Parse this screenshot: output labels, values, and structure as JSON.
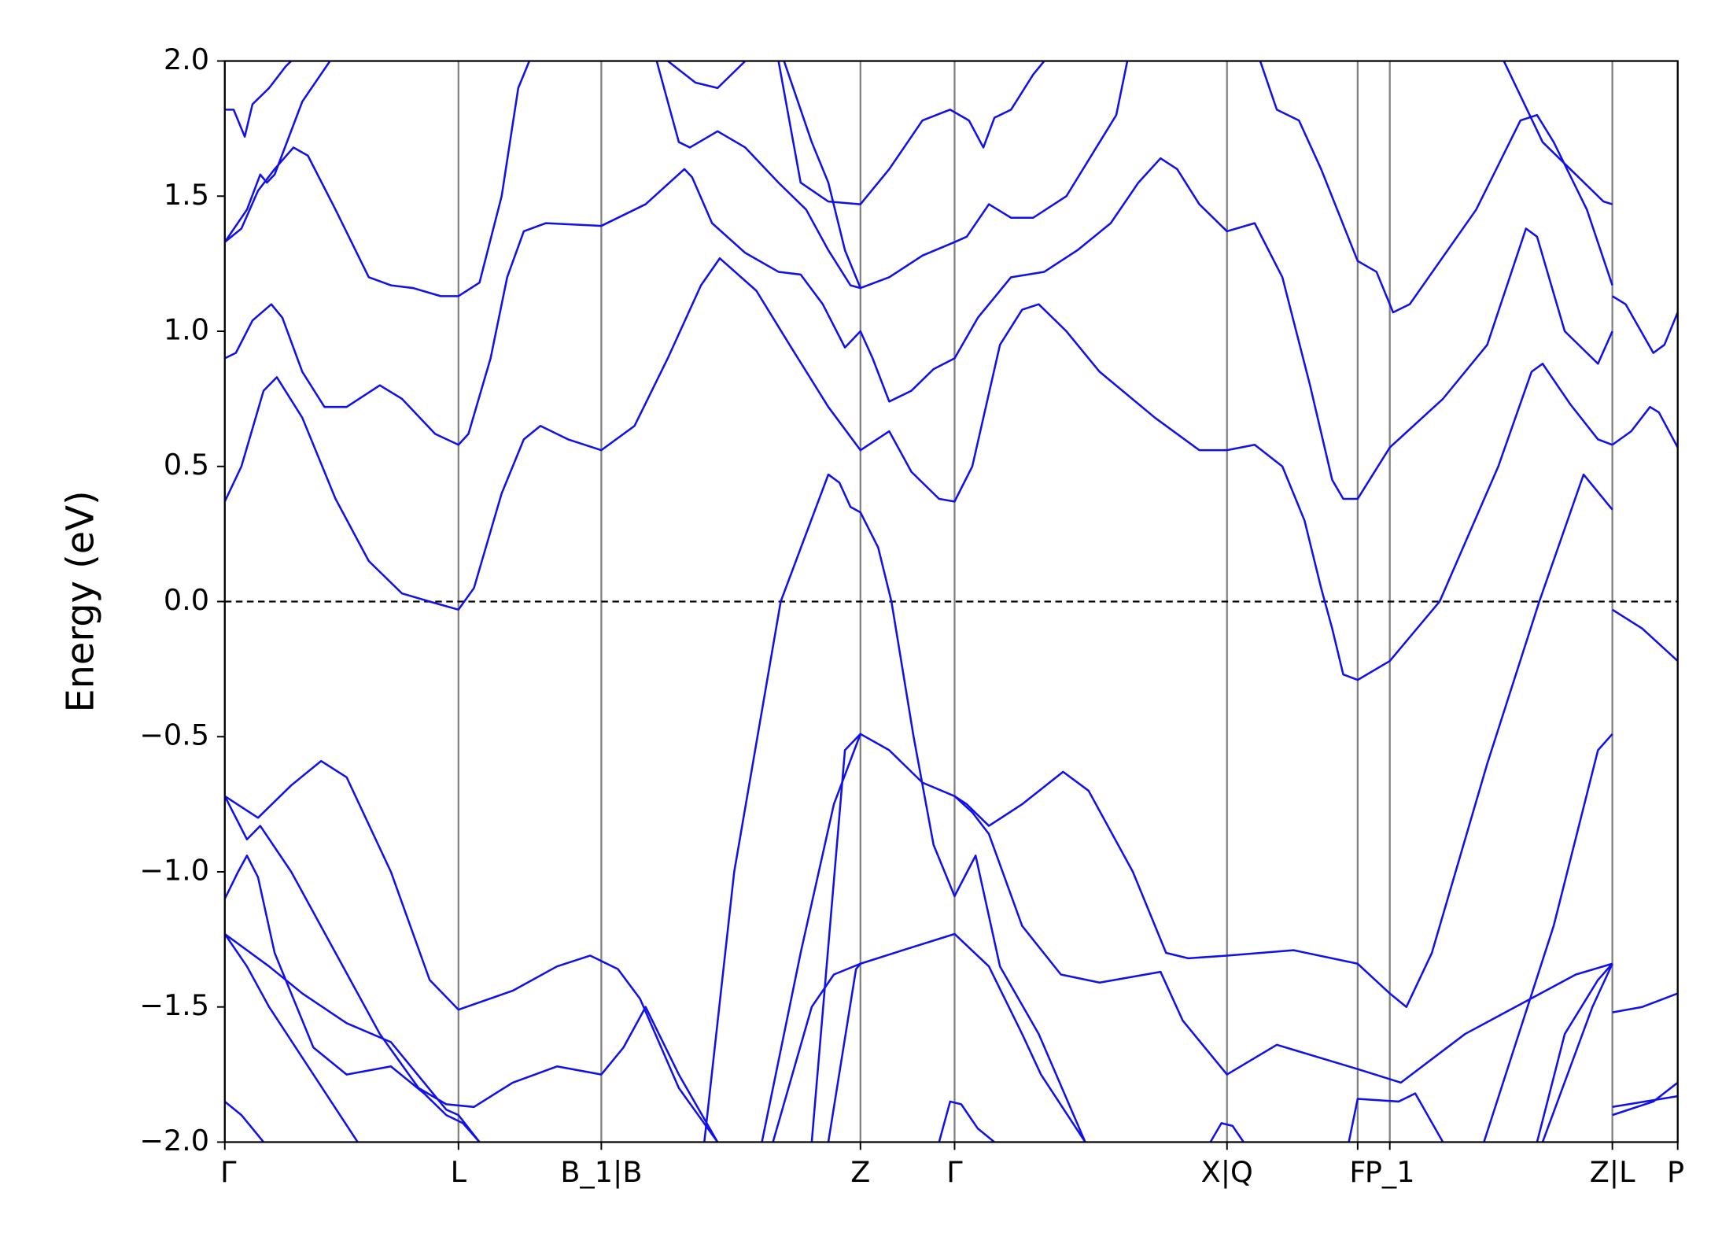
{
  "chart_data": {
    "type": "line",
    "y_label": "Energy (eV)",
    "xlim": [
      0,
      1312
    ],
    "xticks": [
      {
        "value": 0,
        "label": "Γ"
      },
      {
        "value": 211,
        "label": "L"
      },
      {
        "value": 340,
        "label": "B_1|B"
      },
      {
        "value": 574,
        "label": "Z"
      },
      {
        "value": 659,
        "label": "Γ"
      },
      {
        "value": 905,
        "label": "X|Q"
      },
      {
        "value": 1023,
        "label": "F"
      },
      {
        "value": 1052,
        "label": "P_1"
      },
      {
        "value": 1253,
        "label": "Z|L"
      },
      {
        "value": 1312,
        "label": "P"
      }
    ],
    "ylim": [
      -2.0,
      2.0
    ],
    "yticks": [
      {
        "value": -2.0,
        "label": "−2.0"
      },
      {
        "value": -1.5,
        "label": "−1.5"
      },
      {
        "value": -1.0,
        "label": "−1.0"
      },
      {
        "value": -0.5,
        "label": "−0.5"
      },
      {
        "value": 0.0,
        "label": "0.0"
      },
      {
        "value": 0.5,
        "label": "0.5"
      },
      {
        "value": 1.0,
        "label": "1.0"
      },
      {
        "value": 1.5,
        "label": "1.5"
      },
      {
        "value": 2.0,
        "label": "2.0"
      }
    ],
    "grid_color": "#808080",
    "hline": 0,
    "series": [
      {
        "color": "#1010ee",
        "x": [
          0,
          30,
          60,
          87,
          110,
          150,
          185,
          211,
          260,
          300,
          330,
          355,
          375,
          410,
          445
        ],
        "values": [
          -0.72,
          -0.8,
          -0.68,
          -0.59,
          -0.65,
          -1.0,
          -1.4,
          -1.51,
          -1.44,
          -1.35,
          -1.31,
          -1.36,
          -1.47,
          -1.8,
          -2.0
        ]
      },
      {
        "color": "#1010ee",
        "x": [
          0,
          20,
          32,
          60,
          100,
          140,
          175,
          200,
          225,
          260,
          300,
          340,
          360,
          380,
          410,
          445
        ],
        "values": [
          -0.72,
          -0.88,
          -0.83,
          -1.0,
          -1.3,
          -1.6,
          -1.8,
          -1.86,
          -1.87,
          -1.78,
          -1.72,
          -1.75,
          -1.65,
          -1.5,
          -1.75,
          -2.0
        ]
      },
      {
        "color": "#1010ee",
        "x": [
          0,
          12,
          20,
          30,
          45,
          80,
          110,
          150,
          180,
          200,
          215,
          230
        ],
        "values": [
          -1.1,
          -1.0,
          -0.94,
          -1.02,
          -1.3,
          -1.65,
          -1.75,
          -1.72,
          -1.82,
          -1.9,
          -1.93,
          -2.0
        ]
      },
      {
        "color": "#1010ee",
        "x": [
          0,
          40,
          70,
          110,
          150,
          180,
          200,
          211,
          230
        ],
        "values": [
          -1.23,
          -1.35,
          -1.45,
          -1.56,
          -1.63,
          -1.78,
          -1.88,
          -1.9,
          -2.0
        ]
      },
      {
        "color": "#1010ee",
        "x": [
          0,
          20,
          40,
          80,
          120
        ],
        "values": [
          -1.23,
          -1.35,
          -1.5,
          -1.75,
          -2.0
        ]
      },
      {
        "color": "#1010ee",
        "x": [
          0,
          15,
          35
        ],
        "values": [
          -1.85,
          -1.9,
          -2.0
        ]
      },
      {
        "color": "#1010ee",
        "x": [
          433,
          460,
          502,
          545,
          555,
          565,
          574,
          590,
          602,
          622,
          640,
          659,
          678,
          700,
          735,
          777
        ],
        "values": [
          -2.0,
          -1.0,
          0,
          0.47,
          0.44,
          0.35,
          0.33,
          0.2,
          0,
          -0.5,
          -0.9,
          -1.09,
          -0.94,
          -1.35,
          -1.6,
          -2.0
        ]
      },
      {
        "color": "#1010ee",
        "x": [
          485,
          520,
          550,
          574,
          600,
          630,
          659,
          670,
          690,
          720,
          757,
          780,
          820,
          850,
          870,
          905,
          965,
          1023,
          1052,
          1067,
          1090,
          1140,
          1187,
          1227,
          1245,
          1253
        ],
        "values": [
          -2.0,
          -1.3,
          -0.75,
          -0.49,
          -0.55,
          -0.67,
          -0.72,
          -0.75,
          -0.83,
          -0.75,
          -0.63,
          -0.7,
          -1.0,
          -1.3,
          -1.32,
          -1.31,
          -1.29,
          -1.34,
          -1.45,
          -1.5,
          -1.3,
          -0.6,
          0,
          0.47,
          0.38,
          0.34
        ]
      },
      {
        "color": "#1010ee",
        "x": [
          545,
          570,
          574,
          620,
          659,
          690,
          720,
          737,
          777
        ],
        "values": [
          -2.0,
          -1.36,
          -1.34,
          -1.28,
          -1.23,
          -1.35,
          -1.6,
          -1.75,
          -2.0
        ]
      },
      {
        "color": "#1010ee",
        "x": [
          495,
          530,
          550,
          574
        ],
        "values": [
          -2.0,
          -1.5,
          -1.38,
          -1.34
        ]
      },
      {
        "color": "#1010ee",
        "x": [
          530,
          560,
          574
        ],
        "values": [
          -2.0,
          -0.55,
          -0.49
        ]
      },
      {
        "color": "#1010ee",
        "x": [
          645,
          655,
          665,
          680,
          695
        ],
        "values": [
          -2.0,
          -1.85,
          -1.86,
          -1.95,
          -2.0
        ]
      },
      {
        "color": "#1010ee",
        "x": [
          890,
          900,
          910,
          920
        ],
        "values": [
          -2.0,
          -1.93,
          -1.94,
          -2.0
        ]
      },
      {
        "color": "#1010ee",
        "x": [
          659,
          675,
          690,
          720,
          755,
          790,
          845,
          865,
          905,
          950,
          1023,
          1062,
          1120,
          1220,
          1253
        ],
        "values": [
          -0.72,
          -0.78,
          -0.86,
          -1.2,
          -1.38,
          -1.41,
          -1.37,
          -1.55,
          -1.75,
          -1.64,
          -1.73,
          -1.78,
          -1.6,
          -1.38,
          -1.34
        ]
      },
      {
        "color": "#1010ee",
        "x": [
          1015,
          1023,
          1060,
          1075,
          1100
        ],
        "values": [
          -2.0,
          -1.84,
          -1.85,
          -1.82,
          -2.0
        ]
      },
      {
        "color": "#1010ee",
        "x": [
          1185,
          1210,
          1240,
          1253
        ],
        "values": [
          -2.0,
          -1.6,
          -1.4,
          -1.34
        ]
      },
      {
        "color": "#1010ee",
        "x": [
          1190,
          1235,
          1253
        ],
        "values": [
          -2.0,
          -1.5,
          -1.34
        ]
      },
      {
        "color": "#1010ee",
        "x": [
          1137,
          1200,
          1240,
          1253
        ],
        "values": [
          -2.0,
          -1.2,
          -0.55,
          -0.49
        ]
      },
      {
        "color": "#1010ee",
        "x": [
          0,
          10,
          25,
          42,
          52,
          70,
          90,
          110,
          140,
          160,
          190,
          211,
          220,
          240,
          255,
          270,
          290,
          340,
          380,
          415,
          422,
          440,
          470,
          500,
          520,
          540,
          560,
          574,
          585,
          600,
          620,
          640,
          659,
          680,
          710,
          740,
          770,
          800,
          825,
          845,
          860,
          880,
          905,
          930,
          955,
          980,
          1000,
          1010,
          1023,
          1052,
          1100,
          1140,
          1175,
          1185,
          1210,
          1240,
          1253
        ],
        "values": [
          0.9,
          0.92,
          1.04,
          1.1,
          1.05,
          0.85,
          0.72,
          0.72,
          0.8,
          0.75,
          0.62,
          0.58,
          0.62,
          0.9,
          1.2,
          1.37,
          1.4,
          1.39,
          1.47,
          1.6,
          1.57,
          1.4,
          1.29,
          1.22,
          1.21,
          1.1,
          0.94,
          1.0,
          0.9,
          0.74,
          0.78,
          0.86,
          0.9,
          1.05,
          1.2,
          1.22,
          1.3,
          1.4,
          1.55,
          1.64,
          1.6,
          1.47,
          1.37,
          1.4,
          1.2,
          0.8,
          0.45,
          0.38,
          0.38,
          0.57,
          0.75,
          0.95,
          1.38,
          1.35,
          1.0,
          0.88,
          1.0
        ]
      },
      {
        "color": "#1010ee",
        "x": [
          0,
          15,
          35,
          47,
          70,
          100,
          130,
          160,
          185,
          211,
          225,
          250,
          270,
          285,
          310,
          340,
          370,
          400,
          430,
          447,
          480,
          510,
          545,
          574,
          600,
          620,
          645,
          659,
          675,
          700,
          720,
          735,
          760,
          790,
          840,
          880,
          905,
          930,
          955,
          975,
          990,
          1000,
          1010,
          1023,
          1052,
          1097,
          1150,
          1180,
          1190,
          1215,
          1240,
          1253
        ],
        "values": [
          0.37,
          0.5,
          0.78,
          0.83,
          0.68,
          0.38,
          0.15,
          0.03,
          0,
          -0.03,
          0.05,
          0.4,
          0.6,
          0.65,
          0.6,
          0.56,
          0.65,
          0.9,
          1.17,
          1.27,
          1.15,
          0.95,
          0.72,
          0.56,
          0.63,
          0.48,
          0.38,
          0.37,
          0.5,
          0.95,
          1.08,
          1.1,
          1.0,
          0.85,
          0.68,
          0.56,
          0.56,
          0.58,
          0.5,
          0.3,
          0.05,
          -0.1,
          -0.27,
          -0.29,
          -0.22,
          0,
          0.5,
          0.85,
          0.88,
          0.73,
          0.6,
          0.58
        ]
      },
      {
        "color": "#1010ee",
        "x": [
          0,
          15,
          30,
          45,
          62,
          75,
          100,
          130,
          150,
          170,
          195,
          211,
          230,
          250,
          265,
          275
        ],
        "values": [
          1.33,
          1.38,
          1.52,
          1.6,
          1.68,
          1.65,
          1.45,
          1.2,
          1.17,
          1.16,
          1.13,
          1.13,
          1.18,
          1.5,
          1.9,
          2.0
        ]
      },
      {
        "color": "#1010ee",
        "x": [
          0,
          8,
          18,
          25,
          40,
          55,
          60
        ],
        "values": [
          1.82,
          1.82,
          1.72,
          1.84,
          1.9,
          1.98,
          2.0
        ]
      },
      {
        "color": "#1010ee",
        "x": [
          0,
          20,
          32,
          38,
          45,
          70,
          95
        ],
        "values": [
          1.33,
          1.45,
          1.58,
          1.55,
          1.58,
          1.85,
          2.0
        ]
      },
      {
        "color": "#1010ee",
        "x": [
          390,
          410,
          420,
          445,
          470,
          500,
          525,
          545,
          565,
          574,
          600,
          630,
          659,
          670,
          690,
          710,
          730,
          760,
          790,
          805,
          815
        ],
        "values": [
          2.0,
          1.7,
          1.68,
          1.74,
          1.68,
          1.55,
          1.45,
          1.3,
          1.17,
          1.16,
          1.2,
          1.28,
          1.33,
          1.35,
          1.47,
          1.42,
          1.42,
          1.5,
          1.7,
          1.8,
          2.0
        ]
      },
      {
        "color": "#1010ee",
        "x": [
          500,
          520,
          545,
          574,
          600,
          630,
          655,
          672,
          685,
          695,
          710,
          730,
          740
        ],
        "values": [
          2.0,
          1.55,
          1.48,
          1.47,
          1.6,
          1.78,
          1.82,
          1.78,
          1.68,
          1.79,
          1.82,
          1.95,
          2.0
        ]
      },
      {
        "color": "#1010ee",
        "x": [
          400,
          425,
          445,
          470
        ],
        "values": [
          2.0,
          1.92,
          1.9,
          2.0
        ]
      },
      {
        "color": "#1010ee",
        "x": [
          505,
          530,
          545,
          560,
          574
        ],
        "values": [
          2.0,
          1.7,
          1.55,
          1.3,
          1.16
        ]
      },
      {
        "color": "#1010ee",
        "x": [
          935,
          950,
          970,
          990,
          1023,
          1040,
          1055,
          1070,
          1130,
          1170,
          1185,
          1200,
          1230,
          1253
        ],
        "values": [
          2.0,
          1.82,
          1.78,
          1.6,
          1.26,
          1.22,
          1.07,
          1.1,
          1.45,
          1.78,
          1.8,
          1.7,
          1.45,
          1.17
        ]
      },
      {
        "color": "#1010ee",
        "x": [
          1155,
          1190,
          1220,
          1245,
          1253
        ],
        "values": [
          2.0,
          1.7,
          1.58,
          1.48,
          1.47
        ]
      },
      {
        "color": "#1010ee",
        "x": [
          1253,
          1280,
          1312
        ],
        "values": [
          -0.03,
          -0.1,
          -0.22
        ]
      },
      {
        "color": "#1010ee",
        "x": [
          1253,
          1265,
          1290,
          1300,
          1312
        ],
        "values": [
          1.13,
          1.1,
          0.92,
          0.95,
          1.07
        ]
      },
      {
        "color": "#1010ee",
        "x": [
          1253,
          1270,
          1287,
          1295,
          1312
        ],
        "values": [
          0.58,
          0.63,
          0.72,
          0.7,
          0.57
        ]
      },
      {
        "color": "#1010ee",
        "x": [
          1253,
          1280,
          1312
        ],
        "values": [
          -1.52,
          -1.5,
          -1.45
        ]
      },
      {
        "color": "#1010ee",
        "x": [
          1253,
          1312
        ],
        "values": [
          -1.87,
          -1.83
        ]
      },
      {
        "color": "#1010ee",
        "x": [
          1253,
          1290,
          1312
        ],
        "values": [
          -1.9,
          -1.85,
          -1.78
        ]
      }
    ]
  }
}
